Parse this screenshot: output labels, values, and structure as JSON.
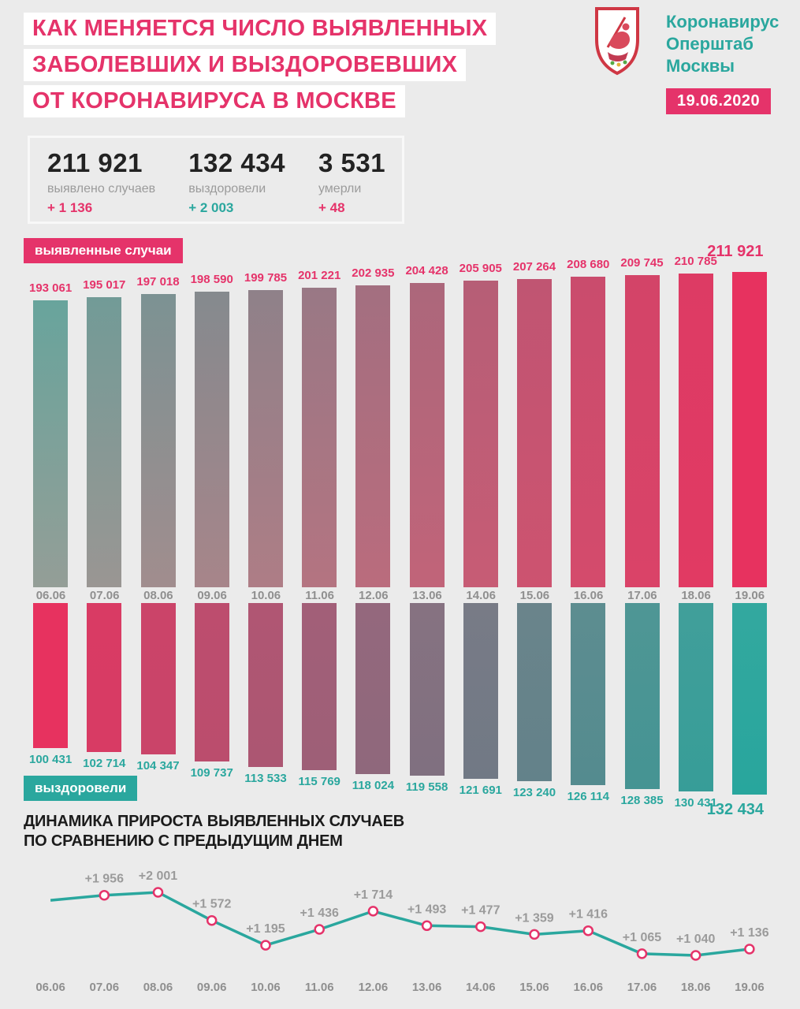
{
  "page": {
    "bg": "#ebebeb"
  },
  "header": {
    "title_lines": [
      "КАК МЕНЯЕТСЯ ЧИСЛО ВЫЯВЛЕННЫХ",
      "ЗАБОЛЕВШИХ И ВЫЗДОРОВЕВШИХ",
      "ОТ КОРОНАВИРУСА В МОСКВЕ"
    ],
    "title_color": "#e5336a",
    "logo": {
      "crest_icon": "moscow-coat-of-arms",
      "lines": [
        {
          "text": "Коронавирус",
          "color": "#2aa79e"
        },
        {
          "text": "Оперштаб",
          "color": "#2aa79e"
        },
        {
          "text": "Москвы",
          "color": "#2aa79e"
        }
      ]
    },
    "date_badge": {
      "text": "19.06.2020",
      "bg": "#e5336a"
    }
  },
  "stats": [
    {
      "value": "211 921",
      "label": "выявлено случаев",
      "delta": "+ 1 136",
      "delta_color": "#e5336a"
    },
    {
      "value": "132 434",
      "label": "выздоровели",
      "delta": "+ 2 003",
      "delta_color": "#2aa79e"
    },
    {
      "value": "3 531",
      "label": "умерли",
      "delta": "+ 48",
      "delta_color": "#e5336a"
    }
  ],
  "chart_data": [
    {
      "type": "bar",
      "name": "detected-cases",
      "badge": {
        "text": "выявленные случаи",
        "bg": "#e5336a"
      },
      "categories": [
        "06.06",
        "07.06",
        "08.06",
        "09.06",
        "10.06",
        "11.06",
        "12.06",
        "13.06",
        "14.06",
        "15.06",
        "16.06",
        "17.06",
        "18.06",
        "19.06"
      ],
      "values": [
        193061,
        195017,
        197018,
        198590,
        199785,
        201221,
        202935,
        204428,
        205905,
        207264,
        208680,
        209745,
        210785,
        211921
      ],
      "labels": [
        "193 061",
        "195 017",
        "197 018",
        "198 590",
        "199 785",
        "201 221",
        "202 935",
        "204 428",
        "205 905",
        "207 264",
        "208 680",
        "209 745",
        "210 785",
        "211 921"
      ],
      "direction": "up",
      "label_color": "#e5336a",
      "color_top_start": "#68a49c",
      "color_top_end": "#e7325f",
      "color_bottom_start": "#949e97",
      "color_bottom_end": "#e7325f"
    },
    {
      "type": "bar",
      "name": "recovered-cases",
      "badge": {
        "text": "выздоровели",
        "bg": "#2aa79e"
      },
      "categories": [
        "06.06",
        "07.06",
        "08.06",
        "09.06",
        "10.06",
        "11.06",
        "12.06",
        "13.06",
        "14.06",
        "15.06",
        "16.06",
        "17.06",
        "18.06",
        "19.06"
      ],
      "values": [
        100431,
        102714,
        104347,
        109737,
        113533,
        115769,
        118024,
        119558,
        121691,
        123240,
        126114,
        128385,
        130431,
        132434
      ],
      "labels": [
        "100 431",
        "102 714",
        "104 347",
        "109 737",
        "113 533",
        "115 769",
        "118 024",
        "119 558",
        "121 691",
        "123 240",
        "126 114",
        "128 385",
        "130 431",
        "132 434"
      ],
      "direction": "down",
      "label_color": "#2aa79e",
      "color_top_start": "#e7325f",
      "color_top_end": "#33a89f",
      "color_bottom_start": "#e7325f",
      "color_bottom_end": "#28a69d"
    },
    {
      "type": "line",
      "name": "daily-increase",
      "title_lines": [
        "ДИНАМИКА ПРИРОСТА ВЫЯВЛЕННЫХ СЛУЧАЕВ",
        "ПО СРАВНЕНИЮ С ПРЕДЫДУЩИМ ДНЕМ"
      ],
      "categories": [
        "06.06",
        "07.06",
        "08.06",
        "09.06",
        "10.06",
        "11.06",
        "12.06",
        "13.06",
        "14.06",
        "15.06",
        "16.06",
        "17.06",
        "18.06",
        "19.06"
      ],
      "values": [
        1880,
        1956,
        2001,
        1572,
        1195,
        1436,
        1714,
        1493,
        1477,
        1359,
        1416,
        1065,
        1040,
        1136
      ],
      "labels": [
        "",
        "+1 956",
        "+2 001",
        "+1 572",
        "+1 195",
        "+1 436",
        "+1 714",
        "+1 493",
        "+1 477",
        "+1 359",
        "+1 416",
        "+1 065",
        "+1 040",
        "+1 136"
      ],
      "line_color": "#2aa79e",
      "marker_stroke": "#e5336a",
      "label_color": "#9b9b9b",
      "axis_color": "#8f8f8f"
    }
  ]
}
